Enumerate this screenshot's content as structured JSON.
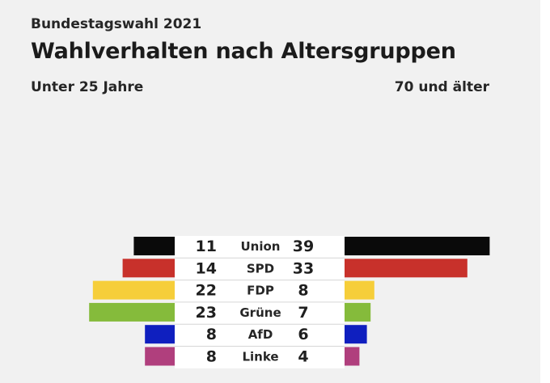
{
  "header": {
    "kicker": "Bundestagswahl 2021",
    "title": "Wahlverhalten nach Altersgruppen",
    "left_group": "Unter 25 Jahre",
    "right_group": "70 und älter"
  },
  "chart_data": {
    "type": "bar",
    "layout": "butterfly",
    "categories": [
      "Union",
      "SPD",
      "FDP",
      "Grüne",
      "AfD",
      "Linke"
    ],
    "colors": [
      "#0a0a0a",
      "#c8312b",
      "#f6ce3a",
      "#85bb3b",
      "#0f1fbf",
      "#b03f7d"
    ],
    "series": [
      {
        "name": "Unter 25 Jahre",
        "values": [
          11,
          14,
          22,
          23,
          8,
          8
        ]
      },
      {
        "name": "70 und älter",
        "values": [
          39,
          33,
          8,
          7,
          6,
          4
        ]
      }
    ],
    "units": "%",
    "grid": false,
    "legend": "none"
  }
}
